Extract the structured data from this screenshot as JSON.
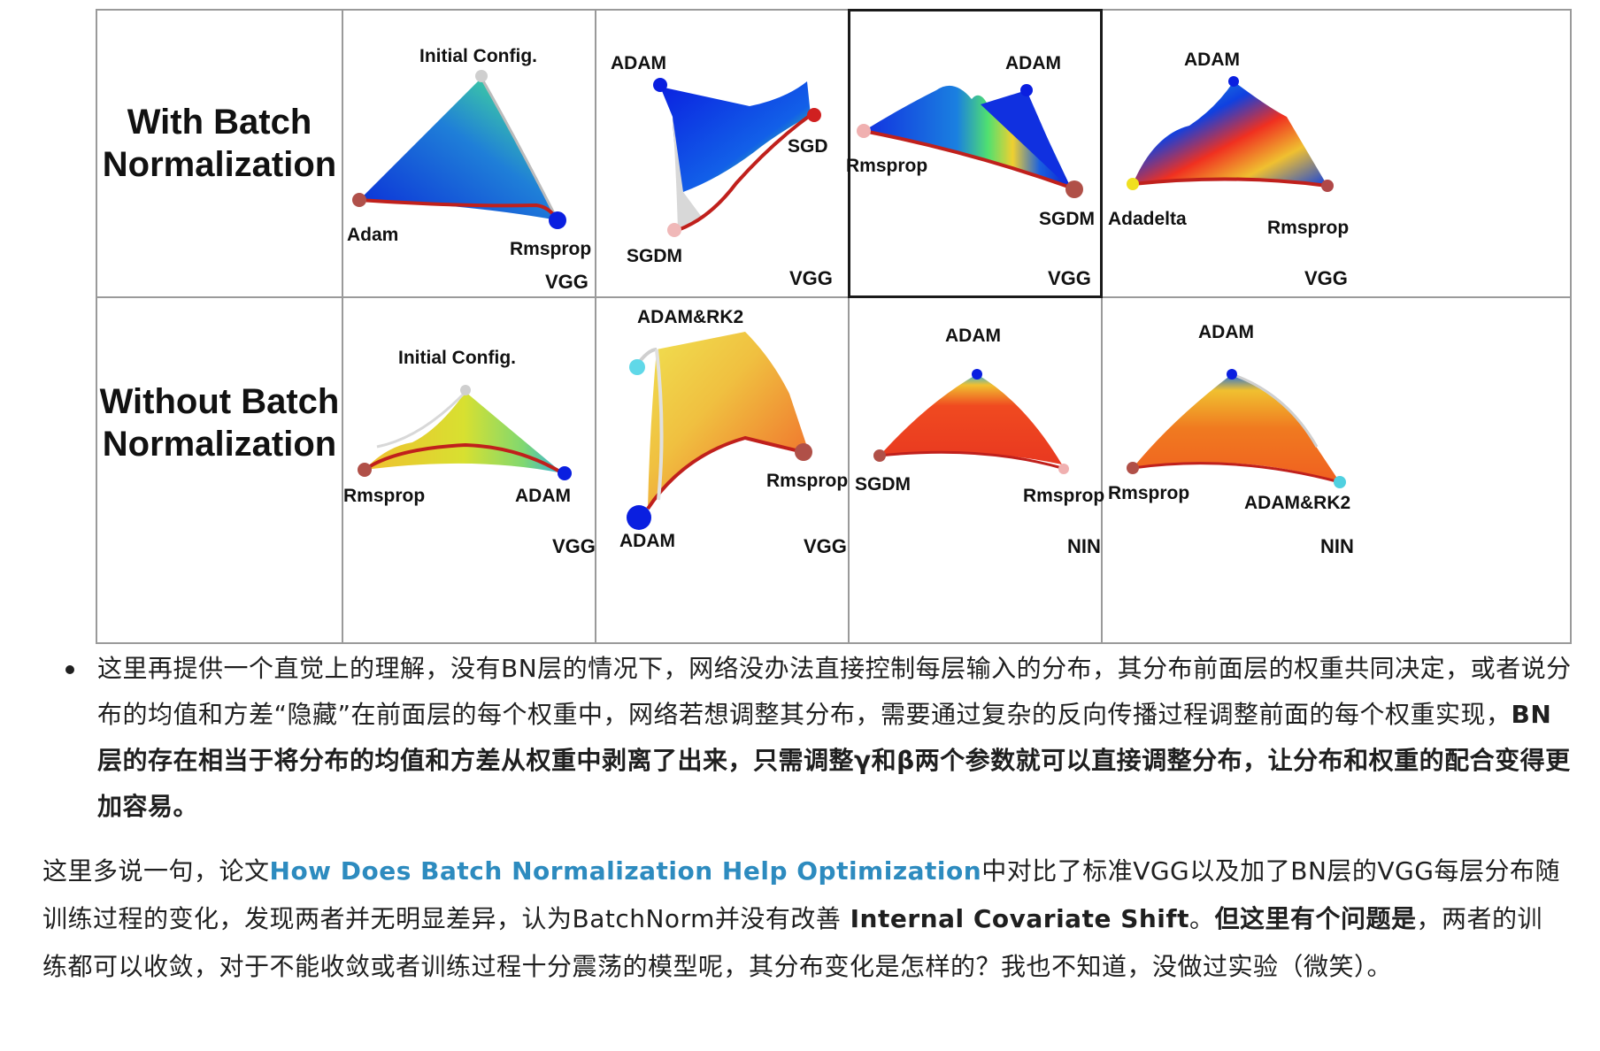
{
  "figure": {
    "rows": [
      {
        "label_line1": "With Batch",
        "label_line2": "Normalization"
      },
      {
        "label_line1": "Without Batch",
        "label_line2": "Normalization"
      }
    ],
    "panels": {
      "r1c1": {
        "top": "Initial Config.",
        "left": "Adam",
        "right": "Rmsprop",
        "model": "VGG"
      },
      "r1c2": {
        "top": "ADAM",
        "right": "SGD",
        "bottom": "SGDM",
        "model": "VGG"
      },
      "r1c3": {
        "top": "ADAM",
        "left": "Rmsprop",
        "right": "SGDM",
        "model": "VGG"
      },
      "r1c4": {
        "top": "ADAM",
        "left": "Adadelta",
        "right": "Rmsprop",
        "model": "VGG"
      },
      "r2c1": {
        "top": "Initial Config.",
        "left": "Rmsprop",
        "right": "ADAM",
        "model": "VGG"
      },
      "r2c2": {
        "top": "ADAM&RK2",
        "right": "Rmsprop",
        "bottom": "ADAM",
        "model": "VGG"
      },
      "r2c3": {
        "top": "ADAM",
        "left": "SGDM",
        "right": "Rmsprop",
        "model": "NIN"
      },
      "r2c4": {
        "top": "ADAM",
        "left": "Rmsprop",
        "right": "ADAM&RK2",
        "model": "NIN"
      }
    }
  },
  "bullet": {
    "text_plain": "这里再提供一个直觉上的理解，没有BN层的情况下，网络没办法直接控制每层输入的分布，其分布前面层的权重共同决定，或者说分布的均值和方差“隐藏”在前面层的每个权重中，网络若想调整其分布，需要通过复杂的反向传播过程调整前面的每个权重实现，",
    "text_bold": "BN层的存在相当于将分布的均值和方差从权重中剥离了出来，只需调整γ和β两个参数就可以直接调整分布，让分布和权重的配合变得更加容易。"
  },
  "paragraph": {
    "part1": "这里多说一句，论文",
    "link": "How Does Batch Normalization Help Optimization",
    "part2": "中对比了标准VGG以及加了BN层的VGG每层分布随训练过程的变化，发现两者并无明显差异，认为BatchNorm并没有改善",
    "bold1": " Internal Covariate Shift",
    "part3": "。",
    "bold2": "但这里有个问题是",
    "part4": "，两者的训练都可以收敛，对于不能收敛或者训练过程十分震荡的模型呢，其分布变化是怎样的？我也不知道，没做过实验（微笑）。"
  }
}
